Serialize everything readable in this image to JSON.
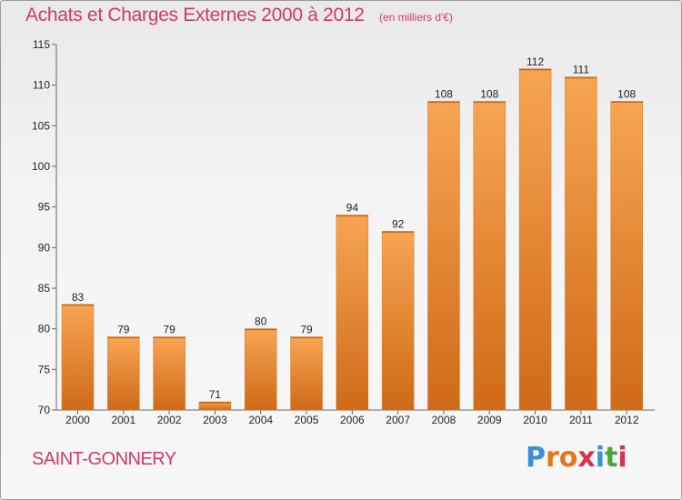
{
  "header": {
    "title": "Achats et Charges Externes 2000 à 2012",
    "subtitle": "(en milliers d'€)"
  },
  "footer": {
    "commune": "SAINT-GONNERY",
    "logo": {
      "letters": [
        "P",
        "r",
        "o",
        "x",
        "i",
        "t",
        "i"
      ],
      "colors": [
        "#3a8fd6",
        "#e0781e",
        "#e0781e",
        "#d6334f",
        "#3a8fd6",
        "#4aa536",
        "#d6334f"
      ]
    }
  },
  "chart_data": {
    "type": "bar",
    "categories": [
      "2000",
      "2001",
      "2002",
      "2003",
      "2004",
      "2005",
      "2006",
      "2007",
      "2008",
      "2009",
      "2010",
      "2011",
      "2012"
    ],
    "values": [
      83,
      79,
      79,
      71,
      80,
      79,
      94,
      92,
      108,
      108,
      112,
      111,
      108
    ],
    "ylim": [
      70,
      115
    ],
    "yticks": [
      70,
      75,
      80,
      85,
      90,
      95,
      100,
      105,
      110,
      115
    ],
    "grid": false,
    "legend": "none",
    "bar_color": "#f0913a"
  }
}
